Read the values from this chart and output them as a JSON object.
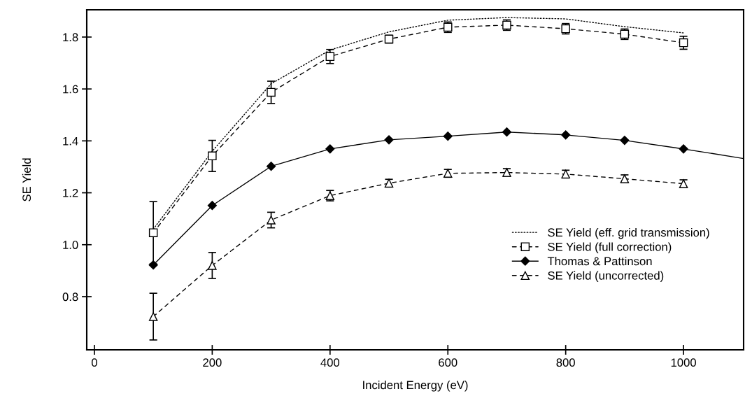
{
  "chart_data": {
    "type": "line",
    "xlabel": "Incident Energy (eV)",
    "ylabel": "SE Yield",
    "xlim": [
      -13,
      1102
    ],
    "ylim": [
      0.595,
      1.905
    ],
    "xticks": [
      0,
      200,
      400,
      600,
      800,
      1000
    ],
    "yticks": [
      {
        "value": 0.8,
        "label": "0.8"
      },
      {
        "value": 1.0,
        "label": "1.0"
      },
      {
        "value": 1.2,
        "label": "1.2"
      },
      {
        "value": 1.4,
        "label": "1.4"
      },
      {
        "value": 1.6,
        "label": "1.6"
      },
      {
        "value": 1.8,
        "label": "1.8"
      }
    ],
    "grid": false,
    "legend": "bottom right",
    "series": [
      {
        "name": "SE Yield (eff. grid transmission)",
        "color": "#000000",
        "line_style": "dotted",
        "marker": "none",
        "x": [
          100,
          200,
          300,
          400,
          500,
          600,
          700,
          800,
          900,
          1000
        ],
        "values": [
          1.06,
          1.36,
          1.62,
          1.75,
          1.82,
          1.865,
          1.875,
          1.87,
          1.84,
          1.816
        ]
      },
      {
        "name": "SE Yield (full correction)",
        "color": "#000000",
        "line_style": "dashed",
        "marker": "square",
        "x": [
          100,
          200,
          300,
          400,
          500,
          600,
          700,
          800,
          900,
          1000
        ],
        "values": [
          1.046,
          1.342,
          1.587,
          1.725,
          1.792,
          1.838,
          1.846,
          1.832,
          1.811,
          1.778
        ],
        "errors": [
          0.12,
          0.06,
          0.043,
          0.027,
          0.015,
          0.02,
          0.02,
          0.02,
          0.02,
          0.025
        ]
      },
      {
        "name": "Thomas & Pattinson",
        "color": "#000000",
        "line_style": "solid",
        "marker": "diamond",
        "x": [
          100,
          200,
          300,
          400,
          500,
          600,
          700,
          800,
          900,
          1000
        ],
        "values": [
          0.922,
          1.151,
          1.302,
          1.369,
          1.404,
          1.418,
          1.434,
          1.423,
          1.402,
          1.369
        ]
      },
      {
        "color": "#000000",
        "line_style": "solid",
        "marker": "none",
        "x": [
          1000,
          1102
        ],
        "values": [
          1.369,
          1.332
        ]
      },
      {
        "name": "SE Yield (uncorrected)",
        "color": "#000000",
        "line_style": "dashed",
        "marker": "triangle",
        "x": [
          100,
          200,
          300,
          400,
          500,
          600,
          700,
          800,
          900,
          1000
        ],
        "values": [
          0.723,
          0.92,
          1.095,
          1.189,
          1.237,
          1.275,
          1.278,
          1.272,
          1.254,
          1.235
        ],
        "errors": [
          0.09,
          0.05,
          0.03,
          0.02,
          0.015,
          0.015,
          0.015,
          0.015,
          0.015,
          0.015
        ]
      }
    ]
  }
}
